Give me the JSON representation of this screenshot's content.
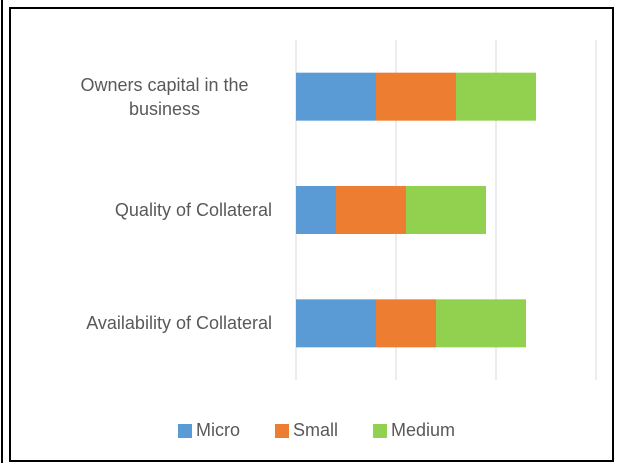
{
  "chart_data": {
    "type": "bar",
    "orientation": "horizontal",
    "stacked": true,
    "categories": [
      "Owners capital in the business",
      "Quality of Collateral",
      "Availability of Collateral"
    ],
    "series": [
      {
        "name": "Micro",
        "color": "#5b9bd5",
        "values": [
          8,
          4,
          8
        ]
      },
      {
        "name": "Small",
        "color": "#ed7d31",
        "values": [
          8,
          7,
          6
        ]
      },
      {
        "name": "Medium",
        "color": "#92d050",
        "values": [
          8,
          8,
          9
        ]
      }
    ],
    "xlim": [
      0,
      30
    ],
    "xticks": [
      0,
      10,
      20,
      30
    ],
    "grid": true,
    "legend": "bottom"
  }
}
